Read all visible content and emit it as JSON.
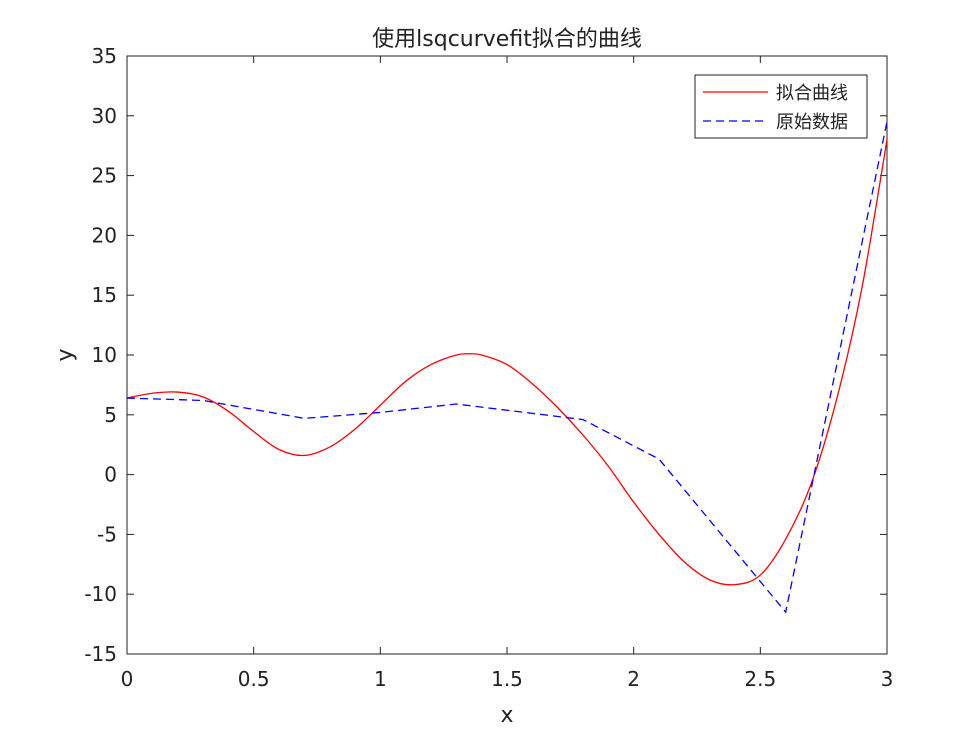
{
  "chart_data": {
    "type": "line",
    "title": "使用lsqcurvefit拟合的曲线",
    "xlabel": "x",
    "ylabel": "y",
    "xlim": [
      0,
      3
    ],
    "ylim": [
      -15,
      35
    ],
    "xticks": [
      0,
      0.5,
      1,
      1.5,
      2,
      2.5,
      3
    ],
    "xtick_labels": [
      "0",
      "0.5",
      "1",
      "1.5",
      "2",
      "2.5",
      "3"
    ],
    "yticks": [
      -15,
      -10,
      -5,
      0,
      5,
      10,
      15,
      20,
      25,
      30,
      35
    ],
    "ytick_labels": [
      "-15",
      "-10",
      "-5",
      "0",
      "5",
      "10",
      "15",
      "20",
      "25",
      "30",
      "35"
    ],
    "grid": false,
    "legend_position": "top-right",
    "series": [
      {
        "name": "拟合曲线",
        "color": "#ff0000",
        "style": "solid",
        "x": [
          0,
          0.1,
          0.2,
          0.3,
          0.4,
          0.5,
          0.6,
          0.7,
          0.8,
          0.9,
          1.0,
          1.1,
          1.2,
          1.3,
          1.35,
          1.4,
          1.5,
          1.6,
          1.7,
          1.8,
          1.9,
          2.0,
          2.1,
          2.2,
          2.3,
          2.4,
          2.5,
          2.6,
          2.7,
          2.8,
          2.9,
          3.0
        ],
        "y": [
          6.4,
          6.8,
          6.9,
          6.5,
          5.3,
          3.6,
          2.1,
          1.6,
          2.3,
          3.8,
          5.8,
          7.8,
          9.2,
          10.0,
          10.1,
          10.0,
          9.2,
          7.6,
          5.6,
          3.3,
          0.7,
          -2.3,
          -5.0,
          -7.3,
          -8.8,
          -9.2,
          -8.4,
          -5.4,
          -0.8,
          6.2,
          15.5,
          28.0
        ]
      },
      {
        "name": "原始数据",
        "color": "#0000ff",
        "style": "dashed",
        "x": [
          0,
          0.3,
          0.7,
          1.0,
          1.3,
          1.8,
          2.1,
          2.6,
          3.0
        ],
        "y": [
          6.4,
          6.2,
          4.7,
          5.2,
          5.9,
          4.6,
          1.3,
          -11.5,
          29.5
        ]
      }
    ]
  }
}
